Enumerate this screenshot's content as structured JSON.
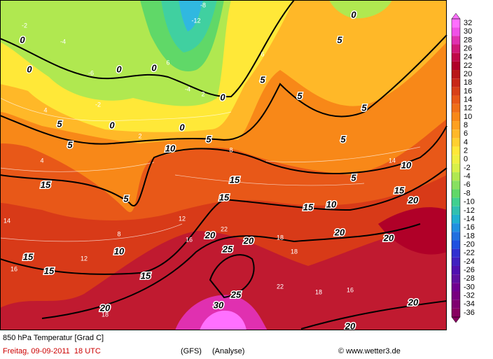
{
  "header": {
    "title": "850 hPa Temperatur [Grad C]",
    "date": "Freitag, 09-09-2011  18 UTC",
    "model": "(GFS)",
    "run": "(Analyse)",
    "credit": "© www.wetter3.de"
  },
  "legend": {
    "ticks": [
      32,
      30,
      28,
      26,
      24,
      22,
      20,
      18,
      16,
      14,
      12,
      10,
      8,
      6,
      4,
      2,
      0,
      -2,
      -4,
      -6,
      -8,
      -10,
      -12,
      -14,
      -16,
      -18,
      -20,
      -22,
      -24,
      -26,
      -28,
      -30,
      -32,
      -34,
      -36
    ],
    "colors": [
      "#ff70ff",
      "#f050e8",
      "#e030b0",
      "#d01878",
      "#c00848",
      "#b00028",
      "#b81818",
      "#c82818",
      "#d84018",
      "#e85818",
      "#f07018",
      "#f88818",
      "#ffa020",
      "#ffb828",
      "#ffd030",
      "#ffe838",
      "#f0f040",
      "#d8f048",
      "#b0e850",
      "#88e060",
      "#60d868",
      "#40d090",
      "#30c0b0",
      "#20b0d0",
      "#2090e0",
      "#2070e0",
      "#2050e0",
      "#3030d0",
      "#4020c0",
      "#5010b0",
      "#6010a0",
      "#700090",
      "#780080",
      "#800070",
      "#880060"
    ]
  },
  "map": {
    "contour_labels": [
      0,
      0,
      0,
      0,
      0,
      0,
      0,
      0,
      5,
      5,
      5,
      5,
      5,
      5,
      5,
      5,
      5,
      5,
      10,
      10,
      10,
      10,
      15,
      15,
      15,
      15,
      15,
      15,
      15,
      15,
      20,
      20,
      20,
      20,
      20,
      20,
      20,
      20,
      25,
      25,
      30
    ],
    "value_labels": [
      -2,
      -4,
      -6,
      -8,
      -12,
      -4,
      2,
      4,
      6,
      8,
      12,
      16,
      18,
      22,
      18,
      16,
      14,
      4,
      2,
      16,
      18,
      22,
      12,
      8,
      6,
      -2,
      14,
      18
    ]
  }
}
